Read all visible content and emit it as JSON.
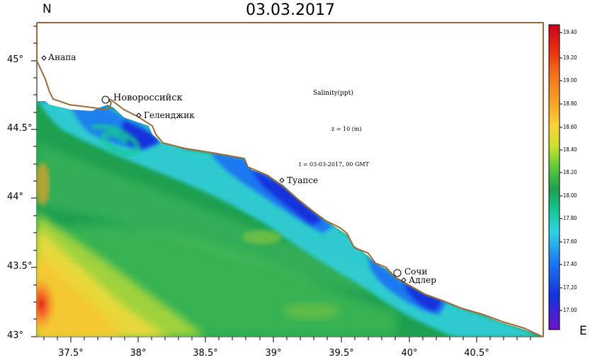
{
  "title": "03.03.2017",
  "corner_labels": {
    "north": "N",
    "east": "E"
  },
  "axes": {
    "lat_ticks": [
      "45°",
      "44.5°",
      "44°",
      "43.5°",
      "43°"
    ],
    "lon_ticks": [
      "37.5°",
      "38°",
      "38.5°",
      "39°",
      "39.5°",
      "40°",
      "40.5°"
    ]
  },
  "annotations": {
    "variable": "Salinity(ppt)",
    "depth": "z = 10 (m)",
    "time": "t = 03-03-2017, 00 GMT"
  },
  "cities": [
    {
      "name": "Анапа",
      "marker": "diamond"
    },
    {
      "name": "Новороссийск",
      "marker": "circle"
    },
    {
      "name": "Геленджик",
      "marker": "diamond"
    },
    {
      "name": "Туапсе",
      "marker": "diamond"
    },
    {
      "name": "Сочи",
      "marker": "circle"
    },
    {
      "name": "Адлер",
      "marker": "diamond"
    }
  ],
  "colorbar": {
    "labels": [
      "19.40",
      "19.20",
      "19.00",
      "18.80",
      "18.60",
      "18.40",
      "18.20",
      "18.00",
      "17.80",
      "17.60",
      "17.40",
      "17.20",
      "17.00"
    ],
    "colors": [
      "#c8001e",
      "#e82d10",
      "#f2701c",
      "#f5a028",
      "#fad237",
      "#c8e032",
      "#5ac83c",
      "#1ea050",
      "#14c896",
      "#32d2e6",
      "#1e78f0",
      "#1432dc",
      "#6e14c8"
    ]
  },
  "colors": {
    "coastline": "#9b6a3a",
    "high_salinity": "#e8281e",
    "low_salinity": "#1428dc"
  }
}
